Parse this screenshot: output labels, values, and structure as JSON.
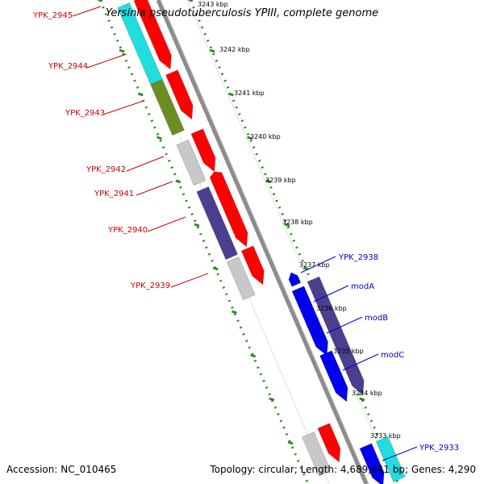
{
  "title": "Yersinia pseudotuberculosis YPIII, complete genome",
  "footer": {
    "accession": "Accession: NC_010465",
    "summary": "Topology: circular; Length: 4,689,441 bp; Genes: 4,290"
  },
  "colors": {
    "backbone": "#8c8c8c",
    "tick": "#2e8b22",
    "forward_gene": "#ff0000",
    "label_left": "#cc0000",
    "label_right": "#0000cc",
    "cyan": "#22dddd",
    "olive": "#6b8e23",
    "grey": "#c8c8c8",
    "slate": "#4b3f8f",
    "blue": "#0000ee"
  },
  "scale_labels": [
    "3243 kbp",
    "3242 kbp",
    "3241 kbp",
    "3240 kbp",
    "3239 kbp",
    "3238 kbp",
    "3237 kbp",
    "3236 kbp",
    "3235 kbp",
    "3234 kbp",
    "3233 kbp"
  ],
  "left_gene_labels": [
    "YPK_2945",
    "YPK_2944",
    "YPK_2943",
    "YPK_2942",
    "YPK_2941",
    "YPK_2940",
    "YPK_2939"
  ],
  "right_gene_labels": [
    "YPK_2938",
    "modA",
    "modB",
    "modC",
    "YPK_2933"
  ]
}
